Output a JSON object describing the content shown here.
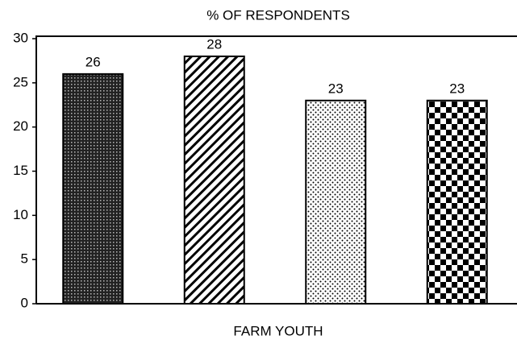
{
  "chart_data": {
    "type": "bar",
    "title": "% OF RESPONDENTS",
    "x_label": "FARM YOUTH",
    "categories": [
      null,
      null,
      null,
      null
    ],
    "values": [
      26,
      28,
      23,
      23
    ],
    "ylim": [
      0,
      30
    ],
    "yticks": [
      0,
      5,
      10,
      15,
      20,
      25,
      30
    ],
    "grid": false
  }
}
